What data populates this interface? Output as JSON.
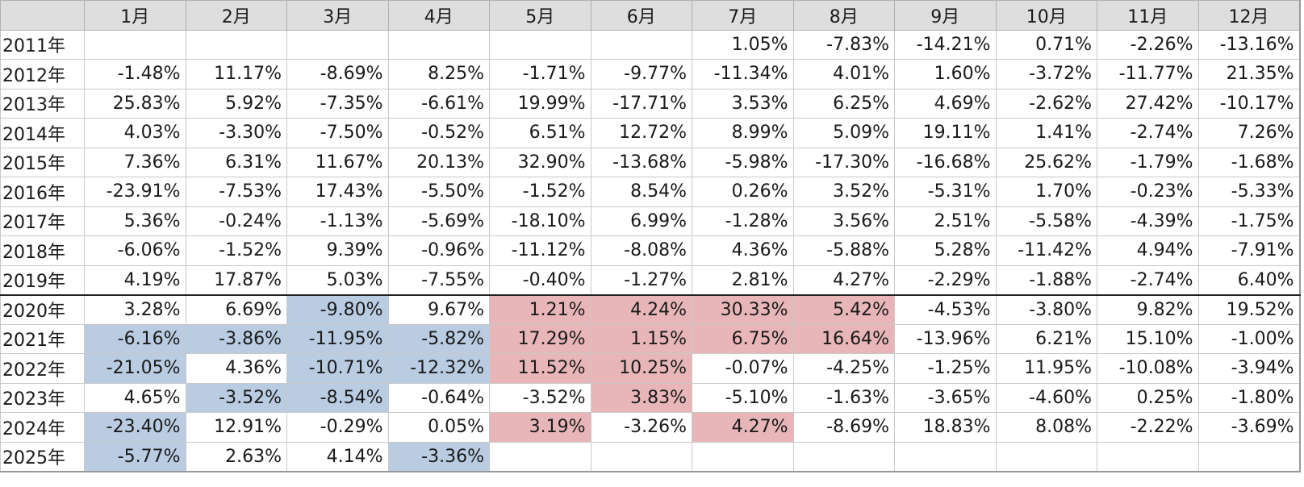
{
  "months": [
    "1月",
    "2月",
    "3月",
    "4月",
    "5月",
    "6月",
    "7月",
    "8月",
    "9月",
    "10月",
    "11月",
    "12月"
  ],
  "colors": {
    "blue": "#b9cce2",
    "red": "#e8b6b8"
  },
  "rows": [
    {
      "year": "2011年",
      "cells": [
        {
          "v": ""
        },
        {
          "v": ""
        },
        {
          "v": ""
        },
        {
          "v": ""
        },
        {
          "v": ""
        },
        {
          "v": ""
        },
        {
          "v": "1.05%"
        },
        {
          "v": "-7.83%"
        },
        {
          "v": "-14.21%"
        },
        {
          "v": "0.71%"
        },
        {
          "v": "-2.26%"
        },
        {
          "v": "-13.16%"
        }
      ]
    },
    {
      "year": "2012年",
      "cells": [
        {
          "v": "-1.48%"
        },
        {
          "v": "11.17%"
        },
        {
          "v": "-8.69%"
        },
        {
          "v": "8.25%"
        },
        {
          "v": "-1.71%"
        },
        {
          "v": "-9.77%"
        },
        {
          "v": "-11.34%"
        },
        {
          "v": "4.01%"
        },
        {
          "v": "1.60%"
        },
        {
          "v": "-3.72%"
        },
        {
          "v": "-11.77%"
        },
        {
          "v": "21.35%"
        }
      ]
    },
    {
      "year": "2013年",
      "cells": [
        {
          "v": "25.83%"
        },
        {
          "v": "5.92%"
        },
        {
          "v": "-7.35%"
        },
        {
          "v": "-6.61%"
        },
        {
          "v": "19.99%"
        },
        {
          "v": "-17.71%"
        },
        {
          "v": "3.53%"
        },
        {
          "v": "6.25%"
        },
        {
          "v": "4.69%"
        },
        {
          "v": "-2.62%"
        },
        {
          "v": "27.42%"
        },
        {
          "v": "-10.17%"
        }
      ]
    },
    {
      "year": "2014年",
      "cells": [
        {
          "v": "4.03%"
        },
        {
          "v": "-3.30%"
        },
        {
          "v": "-7.50%"
        },
        {
          "v": "-0.52%"
        },
        {
          "v": "6.51%"
        },
        {
          "v": "12.72%"
        },
        {
          "v": "8.99%"
        },
        {
          "v": "5.09%"
        },
        {
          "v": "19.11%"
        },
        {
          "v": "1.41%"
        },
        {
          "v": "-2.74%"
        },
        {
          "v": "7.26%"
        }
      ]
    },
    {
      "year": "2015年",
      "cells": [
        {
          "v": "7.36%"
        },
        {
          "v": "6.31%"
        },
        {
          "v": "11.67%"
        },
        {
          "v": "20.13%"
        },
        {
          "v": "32.90%"
        },
        {
          "v": "-13.68%"
        },
        {
          "v": "-5.98%"
        },
        {
          "v": "-17.30%"
        },
        {
          "v": "-16.68%"
        },
        {
          "v": "25.62%"
        },
        {
          "v": "-1.79%"
        },
        {
          "v": "-1.68%"
        }
      ]
    },
    {
      "year": "2016年",
      "cells": [
        {
          "v": "-23.91%"
        },
        {
          "v": "-7.53%"
        },
        {
          "v": "17.43%"
        },
        {
          "v": "-5.50%"
        },
        {
          "v": "-1.52%"
        },
        {
          "v": "8.54%"
        },
        {
          "v": "0.26%"
        },
        {
          "v": "3.52%"
        },
        {
          "v": "-5.31%"
        },
        {
          "v": "1.70%"
        },
        {
          "v": "-0.23%"
        },
        {
          "v": "-5.33%"
        }
      ]
    },
    {
      "year": "2017年",
      "cells": [
        {
          "v": "5.36%"
        },
        {
          "v": "-0.24%"
        },
        {
          "v": "-1.13%"
        },
        {
          "v": "-5.69%"
        },
        {
          "v": "-18.10%"
        },
        {
          "v": "6.99%"
        },
        {
          "v": "-1.28%"
        },
        {
          "v": "3.56%"
        },
        {
          "v": "2.51%"
        },
        {
          "v": "-5.58%"
        },
        {
          "v": "-4.39%"
        },
        {
          "v": "-1.75%"
        }
      ]
    },
    {
      "year": "2018年",
      "cells": [
        {
          "v": "-6.06%"
        },
        {
          "v": "-1.52%"
        },
        {
          "v": "9.39%"
        },
        {
          "v": "-0.96%"
        },
        {
          "v": "-11.12%"
        },
        {
          "v": "-8.08%"
        },
        {
          "v": "4.36%"
        },
        {
          "v": "-5.88%"
        },
        {
          "v": "5.28%"
        },
        {
          "v": "-11.42%"
        },
        {
          "v": "4.94%"
        },
        {
          "v": "-7.91%"
        }
      ]
    },
    {
      "year": "2019年",
      "cells": [
        {
          "v": "4.19%"
        },
        {
          "v": "17.87%"
        },
        {
          "v": "5.03%"
        },
        {
          "v": "-7.55%"
        },
        {
          "v": "-0.40%"
        },
        {
          "v": "-1.27%"
        },
        {
          "v": "2.81%"
        },
        {
          "v": "4.27%"
        },
        {
          "v": "-2.29%"
        },
        {
          "v": "-1.88%"
        },
        {
          "v": "-2.74%"
        },
        {
          "v": "6.40%"
        }
      ]
    },
    {
      "year": "2020年",
      "sep": true,
      "cells": [
        {
          "v": "3.28%"
        },
        {
          "v": "6.69%"
        },
        {
          "v": "-9.80%",
          "h": "blue"
        },
        {
          "v": "9.67%"
        },
        {
          "v": "1.21%",
          "h": "red"
        },
        {
          "v": "4.24%",
          "h": "red"
        },
        {
          "v": "30.33%",
          "h": "red"
        },
        {
          "v": "5.42%",
          "h": "red"
        },
        {
          "v": "-4.53%"
        },
        {
          "v": "-3.80%"
        },
        {
          "v": "9.82%"
        },
        {
          "v": "19.52%"
        }
      ]
    },
    {
      "year": "2021年",
      "cells": [
        {
          "v": "-6.16%",
          "h": "blue"
        },
        {
          "v": "-3.86%",
          "h": "blue"
        },
        {
          "v": "-11.95%",
          "h": "blue"
        },
        {
          "v": "-5.82%",
          "h": "blue"
        },
        {
          "v": "17.29%",
          "h": "red"
        },
        {
          "v": "1.15%",
          "h": "red"
        },
        {
          "v": "6.75%",
          "h": "red"
        },
        {
          "v": "16.64%",
          "h": "red"
        },
        {
          "v": "-13.96%"
        },
        {
          "v": "6.21%"
        },
        {
          "v": "15.10%"
        },
        {
          "v": "-1.00%"
        }
      ]
    },
    {
      "year": "2022年",
      "cells": [
        {
          "v": "-21.05%",
          "h": "blue"
        },
        {
          "v": "4.36%"
        },
        {
          "v": "-10.71%",
          "h": "blue"
        },
        {
          "v": "-12.32%",
          "h": "blue"
        },
        {
          "v": "11.52%",
          "h": "red"
        },
        {
          "v": "10.25%",
          "h": "red"
        },
        {
          "v": "-0.07%"
        },
        {
          "v": "-4.25%"
        },
        {
          "v": "-1.25%"
        },
        {
          "v": "11.95%"
        },
        {
          "v": "-10.08%"
        },
        {
          "v": "-3.94%"
        }
      ]
    },
    {
      "year": "2023年",
      "cells": [
        {
          "v": "4.65%"
        },
        {
          "v": "-3.52%",
          "h": "blue"
        },
        {
          "v": "-8.54%",
          "h": "blue"
        },
        {
          "v": "-0.64%"
        },
        {
          "v": "-3.52%"
        },
        {
          "v": "3.83%",
          "h": "red"
        },
        {
          "v": "-5.10%"
        },
        {
          "v": "-1.63%"
        },
        {
          "v": "-3.65%"
        },
        {
          "v": "-4.60%"
        },
        {
          "v": "0.25%"
        },
        {
          "v": "-1.80%"
        }
      ]
    },
    {
      "year": "2024年",
      "cells": [
        {
          "v": "-23.40%",
          "h": "blue"
        },
        {
          "v": "12.91%"
        },
        {
          "v": "-0.29%"
        },
        {
          "v": "0.05%"
        },
        {
          "v": "3.19%",
          "h": "red"
        },
        {
          "v": "-3.26%"
        },
        {
          "v": "4.27%",
          "h": "red"
        },
        {
          "v": "-8.69%"
        },
        {
          "v": "18.83%"
        },
        {
          "v": "8.08%"
        },
        {
          "v": "-2.22%"
        },
        {
          "v": "-3.69%"
        }
      ]
    },
    {
      "year": "2025年",
      "cells": [
        {
          "v": "-5.77%",
          "h": "blue"
        },
        {
          "v": "2.63%"
        },
        {
          "v": "4.14%"
        },
        {
          "v": "-3.36%",
          "h": "blue"
        },
        {
          "v": ""
        },
        {
          "v": ""
        },
        {
          "v": ""
        },
        {
          "v": ""
        },
        {
          "v": ""
        },
        {
          "v": ""
        },
        {
          "v": ""
        },
        {
          "v": ""
        }
      ]
    }
  ]
}
